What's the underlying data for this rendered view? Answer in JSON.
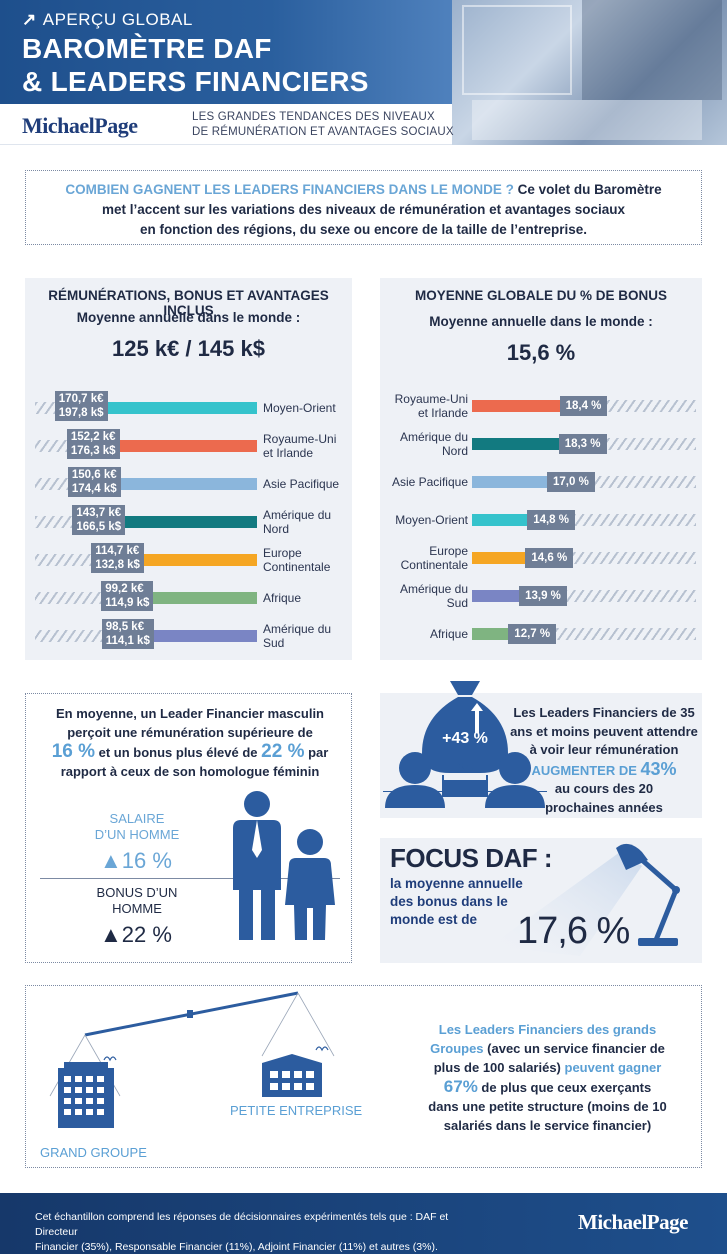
{
  "header": {
    "kicker": "APERÇU GLOBAL",
    "title_line1": "BAROMÈTRE DAF",
    "title_line2": "& LEADERS FINANCIERS",
    "brand": "MichaelPage",
    "subtitle_line1": "LES GRANDES TENDANCES DES NIVEAUX",
    "subtitle_line2": "DE RÉMUNÉRATION ET AVANTAGES SOCIAUX"
  },
  "intro": {
    "highlight": "COMBIEN GAGNENT LES LEADERS FINANCIERS DANS LE MONDE ?",
    "text_a": " Ce volet du Baromètre",
    "line2": "met l’accent sur les variations des niveaux de rémunération et avantages sociaux",
    "line3": "en fonction des régions, du sexe ou encore de la taille de l’entreprise."
  },
  "chart_data": [
    {
      "type": "bar",
      "title": "RÉMUNÉRATIONS, BONUS ET AVANTAGES INCLUS",
      "subtitle": "Moyenne annuelle dans le monde :",
      "headline": "125 k€ / 145 k$",
      "categories": [
        "Moyen-Orient",
        "Royaume-Uni et Irlande",
        "Asie Pacifique",
        "Amérique du Nord",
        "Europe Continentale",
        "Afrique",
        "Amérique du Sud"
      ],
      "series": [
        {
          "values": [
            170.7,
            152.2,
            150.6,
            143.7,
            114.7,
            99.2,
            98.5
          ],
          "labels": [
            "170,7 k€",
            "152,2 k€",
            "150,6 k€",
            "143,7 k€",
            "114,7 k€",
            "99,2 k€",
            "98,5 k€"
          ]
        },
        {
          "values": [
            197.8,
            176.3,
            174.4,
            166.5,
            132.8,
            114.9,
            114.1
          ],
          "labels": [
            "197,8 k$",
            "176,3 k$",
            "174,4 k$",
            "166,5 k$",
            "132,8 k$",
            "114,9 k$",
            "114,1 k$"
          ]
        }
      ],
      "label_lines": [
        [
          "Moyen-Orient"
        ],
        [
          "Royaume-Uni",
          "et Irlande"
        ],
        [
          "Asie Pacifique"
        ],
        [
          "Amérique du",
          "Nord"
        ],
        [
          "Europe",
          "Continentale"
        ],
        [
          "Afrique"
        ],
        [
          "Amérique du",
          "Sud"
        ]
      ],
      "colors": [
        "#35c3cc",
        "#ec6a4e",
        "#8bb6dc",
        "#127a80",
        "#f5a623",
        "#7fb481",
        "#7a85c4"
      ]
    },
    {
      "type": "bar",
      "title": "MOYENNE GLOBALE DU % DE BONUS",
      "subtitle": "Moyenne annuelle dans le monde :",
      "headline": "15,6 %",
      "categories": [
        "Royaume-Uni et Irlande",
        "Amérique du Nord",
        "Asie Pacifique",
        "Moyen-Orient",
        "Europe Continentale",
        "Amérique du Sud",
        "Afrique"
      ],
      "values": [
        18.4,
        18.3,
        17.0,
        14.8,
        14.6,
        13.9,
        12.7
      ],
      "labels": [
        "18,4 %",
        "18,3 %",
        "17,0 %",
        "14,8 %",
        "14,6 %",
        "13,9 %",
        "12,7 %"
      ],
      "label_lines": [
        [
          "Royaume-Uni",
          "et Irlande"
        ],
        [
          "Amérique du",
          "Nord"
        ],
        [
          "Asie Pacifique"
        ],
        [
          "Moyen-Orient"
        ],
        [
          "Europe",
          "Continentale"
        ],
        [
          "Amérique du",
          "Sud"
        ],
        [
          "Afrique"
        ]
      ],
      "colors": [
        "#ec6a4e",
        "#127a80",
        "#8bb6dc",
        "#35c3cc",
        "#f5a623",
        "#7a85c4",
        "#7fb481"
      ]
    }
  ],
  "gender": {
    "line1": "En moyenne, un Leader Financier masculin",
    "line2": "perçoit une rémunération supérieure de",
    "pct_salary": "16 %",
    "line3_mid": " et un bonus plus élevé de ",
    "pct_bonus": "22 %",
    "line3_end": " par",
    "line4": "rapport à ceux de son homologue féminin",
    "salaire_label_1": "SALAIRE",
    "salaire_label_2": "D’UN HOMME",
    "salaire_value": "▲16 %",
    "bonus_label_1": "BONUS D’UN",
    "bonus_label_2": "HOMME",
    "bonus_value": "▲22 %"
  },
  "young": {
    "bag_value": "+43 %",
    "age": "35",
    "line1": "Les Leaders Financiers de 35",
    "line2": "ans et moins peuvent attendre",
    "line3": "à voir leur rémunération",
    "highlight": "AUGMENTER DE ",
    "highlight_pct": "43%",
    "line5": "au cours des 20",
    "line6": "prochaines années"
  },
  "focus": {
    "title": "FOCUS DAF :",
    "line1": "la moyenne annuelle",
    "line2": "des bonus dans le",
    "line3": "monde est de",
    "value": "17,6 %"
  },
  "enterprise": {
    "grand_label": "GRAND GROUPE",
    "petite_label": "PETITE ENTREPRISE",
    "hl1": "Les Leaders Financiers des grands",
    "hl2": "Groupes",
    "text2": " (avec un service financier de",
    "text3": "plus de 100 salariés) ",
    "hl3": "peuvent gagner",
    "pct": "67%",
    "text4": " de plus que ceux exerçants",
    "text5": "dans  une petite structure (moins de 10",
    "text6": "salariés dans le service financier)"
  },
  "footer": {
    "line1": "Cet échantillon comprend les réponses de décisionnaires expérimentés tels que : DAF et  Directeur",
    "line2": "Financier (35%), Responsable Financier (11%), Adjoint Financier (11%) et autres (3%).",
    "brand": "MichaelPage"
  }
}
